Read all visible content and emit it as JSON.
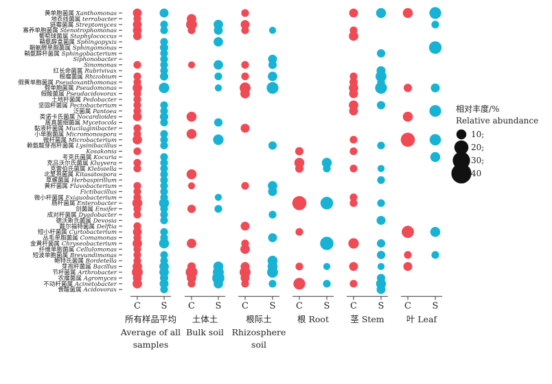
{
  "chart_data": {
    "type": "bubble-matrix",
    "colors": {
      "C": "#ee4b55",
      "S": "#18b3d4"
    },
    "legend": {
      "title_cn": "相对丰度/%",
      "title_en": "Relative abundance",
      "entries": [
        {
          "value": 10,
          "label": "10;"
        },
        {
          "value": 20,
          "label": "20;"
        },
        {
          "value": 30,
          "label": "30;"
        },
        {
          "value": 40,
          "label": "40"
        }
      ]
    },
    "groups": [
      {
        "label_cn": "所有样品平均",
        "label_en": "Average of all samples",
        "line1": "Average of all",
        "line2": "samples"
      },
      {
        "label_cn": "土体土",
        "label_en": "Bulk soil",
        "line1": "Bulk soil",
        "line2": ""
      },
      {
        "label_cn": "根际土",
        "label_en": "Rhizosphere soil",
        "line1": "Rhizosphere",
        "line2": "soil"
      },
      {
        "label_cn": "根",
        "label_en": "Root",
        "line1": "",
        "line2": ""
      },
      {
        "label_cn": "茎",
        "label_en": "Stem",
        "line1": "",
        "line2": ""
      },
      {
        "label_cn": "叶",
        "label_en": "Leaf",
        "line1": "",
        "line2": ""
      }
    ],
    "subcolumns": [
      "C",
      "S"
    ],
    "genera": [
      {
        "cn": "黄单胞菌属",
        "latin": "Xanthomonas",
        "v": [
          8,
          8,
          0,
          0,
          6,
          0,
          0,
          0,
          8,
          10,
          10,
          14
        ]
      },
      {
        "cn": "地衣线菌属",
        "latin": "terrabacter",
        "v": [
          6,
          0,
          9,
          0,
          0,
          0,
          0,
          0,
          0,
          0,
          0,
          0
        ]
      },
      {
        "cn": "链霉菌属",
        "latin": "Streptomyces",
        "v": [
          8,
          6,
          12,
          9,
          8,
          0,
          0,
          0,
          0,
          0,
          0,
          6
        ]
      },
      {
        "cn": "寡养单胞菌属",
        "latin": "Stenotrophomonas",
        "v": [
          8,
          6,
          6,
          8,
          6,
          5,
          0,
          0,
          6,
          0,
          0,
          0
        ]
      },
      {
        "cn": "葡萄球菌属",
        "latin": "Staphylococcus",
        "v": [
          7,
          0,
          0,
          0,
          0,
          0,
          0,
          0,
          9,
          0,
          0,
          0
        ]
      },
      {
        "cn": "鞘氨醇盒菌属",
        "latin": "Sphingopyxis",
        "v": [
          0,
          6,
          0,
          9,
          0,
          0,
          0,
          0,
          0,
          0,
          0,
          0
        ]
      },
      {
        "cn": "鞘氨醇单胞菌属",
        "latin": "Sphingomonas",
        "v": [
          0,
          7,
          0,
          0,
          0,
          0,
          0,
          0,
          0,
          0,
          0,
          16
        ]
      },
      {
        "cn": "鞘氨醇杆菌属",
        "latin": "Sphingobacterium",
        "v": [
          0,
          6,
          0,
          0,
          0,
          0,
          0,
          0,
          0,
          7,
          0,
          0
        ]
      },
      {
        "cn": "",
        "latin": "Siphonobacter",
        "v": [
          0,
          6,
          0,
          0,
          0,
          8,
          0,
          0,
          0,
          0,
          0,
          0
        ]
      },
      {
        "cn": "",
        "latin": "Sinomonas",
        "v": [
          6,
          6,
          5,
          9,
          6,
          7,
          0,
          0,
          0,
          0,
          0,
          0
        ]
      },
      {
        "cn": "红长命菌属",
        "latin": "Rubrivivax",
        "v": [
          0,
          6,
          0,
          0,
          0,
          0,
          0,
          0,
          0,
          8,
          0,
          0
        ]
      },
      {
        "cn": "根瘤菌属",
        "latin": "Rhizobium",
        "v": [
          6,
          7,
          0,
          6,
          6,
          9,
          0,
          0,
          6,
          12,
          0,
          0
        ]
      },
      {
        "cn": "假黄单胞菌属",
        "latin": "Pseudoxanthomonas",
        "v": [
          6,
          0,
          0,
          0,
          0,
          0,
          0,
          0,
          7,
          6,
          0,
          0
        ]
      },
      {
        "cn": "假单胞菌属",
        "latin": "Pseudomonas",
        "v": [
          9,
          11,
          0,
          5,
          12,
          14,
          0,
          0,
          9,
          14,
          7,
          8
        ]
      },
      {
        "cn": "假酸菌属",
        "latin": "Pseudacidovorax",
        "v": [
          6,
          0,
          0,
          0,
          9,
          0,
          0,
          0,
          8,
          0,
          0,
          0
        ]
      },
      {
        "cn": "土地杆菌属",
        "latin": "Pedobacter",
        "v": [
          6,
          0,
          0,
          0,
          0,
          0,
          0,
          0,
          0,
          0,
          0,
          0
        ]
      },
      {
        "cn": "坚固杆菌属",
        "latin": "Pectobacterium",
        "v": [
          6,
          6,
          0,
          0,
          0,
          0,
          0,
          0,
          9,
          7,
          0,
          0
        ]
      },
      {
        "cn": "泛菌属",
        "latin": "Pantoea",
        "v": [
          6,
          6,
          0,
          0,
          0,
          0,
          0,
          0,
          8,
          0,
          0,
          14
        ]
      },
      {
        "cn": "类诺卡氏菌属",
        "latin": "Nocardioides",
        "v": [
          8,
          7,
          10,
          0,
          0,
          0,
          0,
          0,
          0,
          0,
          10,
          0
        ]
      },
      {
        "cn": "居真菌细菌属",
        "latin": "Mycetocola",
        "v": [
          0,
          6,
          0,
          7,
          0,
          0,
          0,
          0,
          0,
          0,
          0,
          0
        ]
      },
      {
        "cn": "黏液杆菌属",
        "latin": "Mucilaginibacter",
        "v": [
          6,
          0,
          0,
          0,
          8,
          0,
          0,
          0,
          0,
          0,
          0,
          0
        ]
      },
      {
        "cn": "小单胞菌属",
        "latin": "Micromonospora",
        "v": [
          6,
          6,
          10,
          0,
          0,
          0,
          0,
          0,
          0,
          0,
          0,
          0
        ]
      },
      {
        "cn": "微杆菌属",
        "latin": "Microbacterium",
        "v": [
          9,
          6,
          0,
          11,
          0,
          0,
          0,
          0,
          6,
          0,
          20,
          13
        ]
      },
      {
        "cn": "赖氨酸芽孢杆菌属",
        "latin": "Lysinibacillus",
        "v": [
          0,
          6,
          0,
          0,
          0,
          7,
          0,
          0,
          0,
          6,
          0,
          0
        ]
      },
      {
        "cn": "",
        "latin": "Kosakonia",
        "v": [
          6,
          0,
          0,
          0,
          0,
          0,
          7,
          0,
          6,
          0,
          0,
          0
        ]
      },
      {
        "cn": "考克氏菌属",
        "latin": "Kocuria",
        "v": [
          0,
          6,
          0,
          0,
          0,
          0,
          0,
          0,
          0,
          0,
          0,
          10
        ]
      },
      {
        "cn": "克吕沃尔氏菌属",
        "latin": "Kluyvera",
        "v": [
          6,
          6,
          0,
          0,
          0,
          0,
          10,
          10,
          0,
          0,
          0,
          0
        ]
      },
      {
        "cn": "克雷伯氏菌属",
        "latin": "Klebsiella",
        "v": [
          6,
          6,
          0,
          0,
          0,
          0,
          7,
          6,
          6,
          5,
          0,
          0
        ]
      },
      {
        "cn": "北里孢菌属",
        "latin": "Kitasatospora",
        "v": [
          0,
          6,
          10,
          0,
          0,
          0,
          0,
          0,
          0,
          0,
          0,
          0
        ]
      },
      {
        "cn": "草螺菌属",
        "latin": "Herbaspirillum",
        "v": [
          0,
          6,
          0,
          0,
          0,
          0,
          0,
          0,
          0,
          6,
          0,
          0
        ]
      },
      {
        "cn": "黄杆菌属",
        "latin": "Flavobacterium",
        "v": [
          6,
          6,
          5,
          0,
          6,
          9,
          0,
          0,
          0,
          0,
          0,
          0
        ]
      },
      {
        "cn": "",
        "latin": "Fictibacillus",
        "v": [
          6,
          6,
          0,
          0,
          0,
          8,
          0,
          0,
          0,
          0,
          0,
          0
        ]
      },
      {
        "cn": "微小杆菌属",
        "latin": "Exiguobacterium",
        "v": [
          6,
          6,
          0,
          5,
          0,
          0,
          0,
          0,
          6,
          0,
          0,
          0
        ]
      },
      {
        "cn": "肠杆菌属",
        "latin": "Enterobacter",
        "v": [
          10,
          10,
          0,
          0,
          0,
          0,
          20,
          16,
          6,
          6,
          0,
          0
        ]
      },
      {
        "cn": "剑菌属",
        "latin": "Ensifer",
        "v": [
          6,
          6,
          7,
          6,
          0,
          0,
          0,
          0,
          0,
          0,
          0,
          0
        ]
      },
      {
        "cn": "成对杆菌属",
        "latin": "Dyadobacter",
        "v": [
          6,
          6,
          0,
          0,
          0,
          6,
          0,
          0,
          0,
          0,
          0,
          0
        ]
      },
      {
        "cn": "德沃斯氏菌属",
        "latin": "Devosia",
        "v": [
          0,
          6,
          0,
          0,
          0,
          0,
          0,
          0,
          0,
          8,
          0,
          0
        ]
      },
      {
        "cn": "戴尔福特菌属",
        "latin": "Delftia",
        "v": [
          6,
          0,
          0,
          0,
          8,
          0,
          0,
          0,
          0,
          0,
          0,
          0
        ]
      },
      {
        "cn": "短小杆菌属",
        "latin": "Curtobacterium",
        "v": [
          8,
          6,
          0,
          0,
          0,
          0,
          6,
          0,
          0,
          0,
          15,
          10
        ]
      },
      {
        "cn": "丛毛单胞菌属",
        "latin": "Comamonas",
        "v": [
          6,
          6,
          0,
          0,
          0,
          8,
          0,
          0,
          0,
          0,
          0,
          0
        ]
      },
      {
        "cn": "金黄杆菌属",
        "latin": "Chryseobacterium",
        "v": [
          9,
          10,
          9,
          0,
          6,
          0,
          0,
          18,
          11,
          7,
          0,
          0
        ]
      },
      {
        "cn": "纤维单胞菌属",
        "latin": "Cellulomonas",
        "v": [
          6,
          0,
          0,
          0,
          9,
          0,
          0,
          0,
          0,
          0,
          0,
          0
        ]
      },
      {
        "cn": "短波单胞菌属",
        "latin": "Brevundimonas",
        "v": [
          6,
          6,
          0,
          0,
          0,
          0,
          0,
          0,
          0,
          7,
          6,
          6
        ]
      },
      {
        "cn": "鲍特氏菌属",
        "latin": "Bordetella",
        "v": [
          6,
          6,
          0,
          0,
          0,
          10,
          0,
          0,
          0,
          0,
          0,
          0
        ]
      },
      {
        "cn": "芽孢杆菌属",
        "latin": "Bacillus",
        "v": [
          9,
          9,
          7,
          10,
          8,
          10,
          6,
          5,
          8,
          5,
          8,
          0
        ]
      },
      {
        "cn": "节杆菌属",
        "latin": "Arthrobacter",
        "v": [
          12,
          9,
          14,
          12,
          12,
          12,
          0,
          0,
          0,
          0,
          0,
          0
        ]
      },
      {
        "cn": "农瘤菌属",
        "latin": "Agromyces",
        "v": [
          8,
          7,
          9,
          15,
          8,
          0,
          0,
          0,
          0,
          7,
          0,
          0
        ]
      },
      {
        "cn": "不动杆菌属",
        "latin": "Acinetobacter",
        "v": [
          9,
          8,
          6,
          9,
          6,
          6,
          14,
          6,
          6,
          10,
          0,
          0
        ]
      },
      {
        "cn": "食酸菌属",
        "latin": "Acidovorax",
        "v": [
          0,
          6,
          0,
          0,
          0,
          0,
          0,
          0,
          0,
          8,
          0,
          0
        ]
      }
    ]
  }
}
